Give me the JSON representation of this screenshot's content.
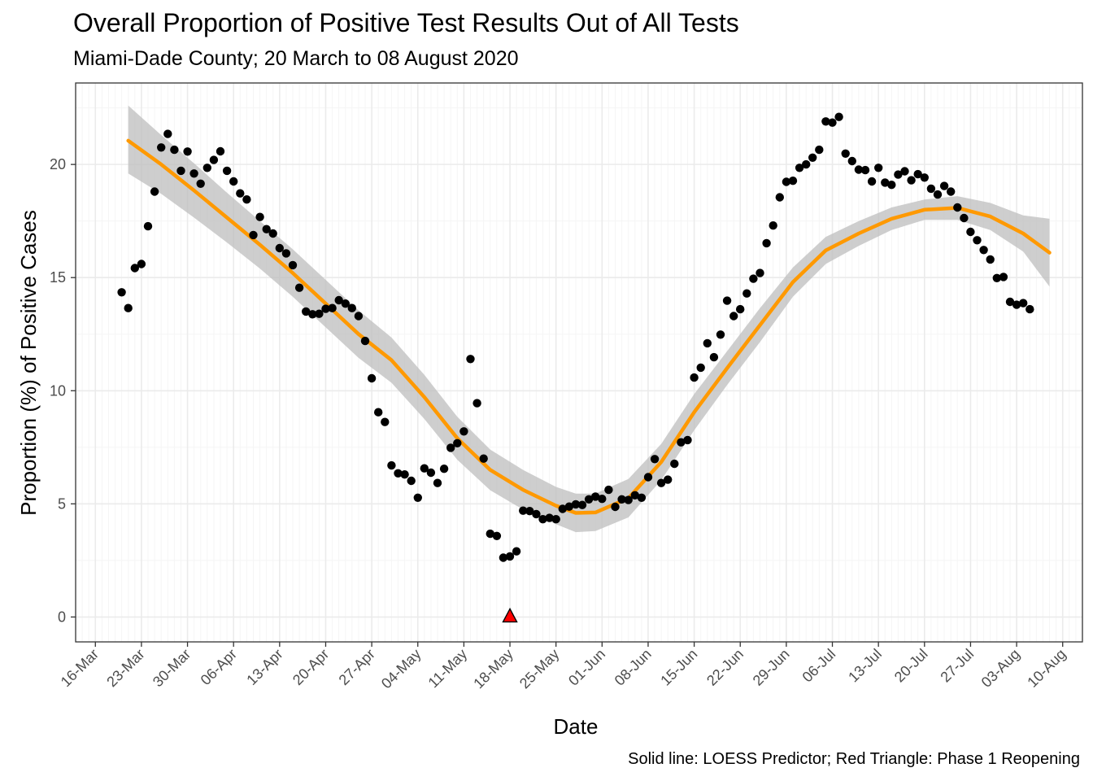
{
  "chart_data": {
    "type": "scatter",
    "title": "Overall Proportion of Positive Test Results Out of All Tests",
    "subtitle": "Miami-Dade County; 20 March to 08 August 2020",
    "caption": "Solid line: LOESS Predictor; Red Triangle: Phase 1 Reopening",
    "xlabel": "Date",
    "ylabel": "Proportion (%) of Positive Cases",
    "xlim": [
      "2020-03-13",
      "2020-08-13"
    ],
    "ylim": [
      -1.1,
      23.6
    ],
    "x_ticks": [
      "2020-03-16",
      "2020-03-23",
      "2020-03-30",
      "2020-04-06",
      "2020-04-13",
      "2020-04-20",
      "2020-04-27",
      "2020-05-04",
      "2020-05-11",
      "2020-05-18",
      "2020-05-25",
      "2020-06-01",
      "2020-06-08",
      "2020-06-15",
      "2020-06-22",
      "2020-06-29",
      "2020-07-06",
      "2020-07-13",
      "2020-07-20",
      "2020-07-27",
      "2020-08-03",
      "2020-08-10"
    ],
    "x_tick_labels": [
      "16-Mar",
      "23-Mar",
      "30-Mar",
      "06-Apr",
      "13-Apr",
      "20-Apr",
      "27-Apr",
      "04-May",
      "11-May",
      "18-May",
      "25-May",
      "01-Jun",
      "08-Jun",
      "15-Jun",
      "22-Jun",
      "29-Jun",
      "06-Jul",
      "13-Jul",
      "20-Jul",
      "27-Jul",
      "03-Aug",
      "10-Aug"
    ],
    "y_ticks": [
      0,
      5,
      10,
      15,
      20
    ],
    "grid": true,
    "colors": {
      "points": "#000000",
      "loess": "#ff9900",
      "band": "#bdbdbd",
      "marker": "#ff0000",
      "grid_major": "#ebebeb",
      "grid_minor": "#f5f5f5"
    },
    "points": {
      "start_date": "2020-03-20",
      "y": [
        14.35,
        13.65,
        15.42,
        15.6,
        17.27,
        18.8,
        20.75,
        21.35,
        20.65,
        19.72,
        20.57,
        19.6,
        19.15,
        19.85,
        20.2,
        20.58,
        19.72,
        19.25,
        18.72,
        18.45,
        16.88,
        17.68,
        17.14,
        16.95,
        16.3,
        16.07,
        15.55,
        14.55,
        13.5,
        13.38,
        13.4,
        13.62,
        13.65,
        14.0,
        13.85,
        13.65,
        13.3,
        12.2,
        10.55,
        9.05,
        8.62,
        6.7,
        6.35,
        6.3,
        6.02,
        5.27,
        6.57,
        6.38,
        5.92,
        6.55,
        7.48,
        7.68,
        8.2,
        11.4,
        9.45,
        7.0,
        3.68,
        3.58,
        2.62,
        2.68,
        2.9,
        4.7,
        4.68,
        4.55,
        4.32,
        4.38,
        4.32,
        4.78,
        4.88,
        4.98,
        4.95,
        5.2,
        5.32,
        5.22,
        5.62,
        4.87,
        5.2,
        5.17,
        5.38,
        5.27,
        6.18,
        6.98,
        5.92,
        6.07,
        6.77,
        7.72,
        7.82,
        10.58,
        11.02,
        12.1,
        11.48,
        12.48,
        13.98,
        13.3,
        13.6,
        14.3,
        14.95,
        15.2,
        16.52,
        17.3,
        18.55,
        19.23,
        19.28,
        19.85,
        20.0,
        20.3,
        20.65,
        21.9,
        21.85,
        22.1,
        20.48,
        20.15,
        19.77,
        19.75,
        19.25,
        19.85,
        19.2,
        19.1,
        19.55,
        19.7,
        19.3,
        19.57,
        19.42,
        18.93,
        18.67,
        19.05,
        18.8,
        18.1,
        17.63,
        17.02,
        16.65,
        16.22,
        15.8,
        14.98,
        15.03,
        13.93,
        13.8,
        13.87,
        13.6
      ]
    },
    "loess": {
      "x": [
        "2020-03-21",
        "2020-03-26",
        "2020-03-31",
        "2020-04-05",
        "2020-04-10",
        "2020-04-15",
        "2020-04-20",
        "2020-04-25",
        "2020-04-30",
        "2020-05-05",
        "2020-05-10",
        "2020-05-15",
        "2020-05-20",
        "2020-05-25",
        "2020-05-28",
        "2020-05-31",
        "2020-06-05",
        "2020-06-10",
        "2020-06-15",
        "2020-06-20",
        "2020-06-25",
        "2020-06-30",
        "2020-07-05",
        "2020-07-10",
        "2020-07-15",
        "2020-07-20",
        "2020-07-25",
        "2020-07-30",
        "2020-08-04",
        "2020-08-08"
      ],
      "y": [
        21.05,
        20.0,
        18.85,
        17.65,
        16.45,
        15.2,
        13.85,
        12.5,
        11.35,
        9.72,
        7.9,
        6.5,
        5.62,
        4.92,
        4.6,
        4.62,
        5.25,
        6.85,
        9.05,
        11.0,
        12.9,
        14.8,
        16.2,
        16.95,
        17.6,
        18.0,
        18.08,
        17.7,
        16.95,
        16.1
      ],
      "lower": [
        19.6,
        18.7,
        17.65,
        16.55,
        15.4,
        14.15,
        12.8,
        11.45,
        10.35,
        8.75,
        6.95,
        5.6,
        4.75,
        4.1,
        3.75,
        3.8,
        4.4,
        6.05,
        8.25,
        10.25,
        12.15,
        14.15,
        15.6,
        16.4,
        17.1,
        17.55,
        17.55,
        17.1,
        16.15,
        14.6
      ],
      "upper": [
        22.6,
        21.3,
        20.05,
        18.75,
        17.5,
        16.25,
        14.9,
        13.55,
        12.35,
        10.7,
        8.85,
        7.4,
        6.5,
        5.75,
        5.45,
        5.45,
        6.1,
        7.65,
        9.85,
        11.75,
        13.65,
        15.45,
        16.8,
        17.5,
        18.1,
        18.45,
        18.6,
        18.3,
        17.75,
        17.6
      ]
    },
    "marker": {
      "x": "2020-05-18",
      "y": 0,
      "shape": "triangle"
    }
  }
}
